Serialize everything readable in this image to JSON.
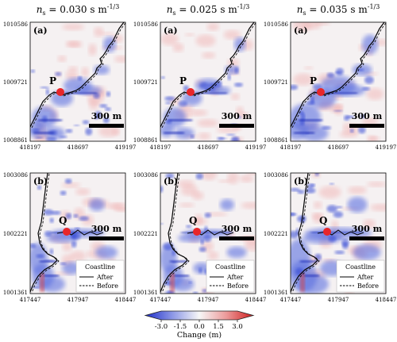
{
  "columns": [
    {
      "label_prefix": "n",
      "label_sub": "s",
      "label_value": " = 0.030 s m",
      "label_exp": "-1/3"
    },
    {
      "label_prefix": "n",
      "label_sub": "s",
      "label_value": " = 0.025 s m",
      "label_exp": "-1/3"
    },
    {
      "label_prefix": "n",
      "label_sub": "s",
      "label_value": " = 0.035 s m",
      "label_exp": "-1/3"
    }
  ],
  "rows": [
    {
      "panel_label": "(a)",
      "point_label": "P",
      "y_ticks": [
        "1010586",
        "1009721",
        "1008861"
      ],
      "x_ticks": [
        "418197",
        "418697",
        "419197"
      ],
      "scale_bar": "300 m"
    },
    {
      "panel_label": "(b)",
      "point_label": "Q",
      "y_ticks": [
        "1003086",
        "1002221",
        "1001361"
      ],
      "x_ticks": [
        "417447",
        "417947",
        "418447"
      ],
      "scale_bar": "300 m",
      "legend": {
        "title": "Coastline",
        "after": "After",
        "before": "Before"
      }
    }
  ],
  "colorbar": {
    "ticks": [
      "-3.0",
      "-1.5",
      "0.0",
      "1.5",
      "3.0"
    ],
    "label": "Change (m)",
    "colors": {
      "negative": "#2b3fd6",
      "neutral": "#f7f7f7",
      "positive": "#d92b2b"
    }
  },
  "marker_color": "#e8262a"
}
